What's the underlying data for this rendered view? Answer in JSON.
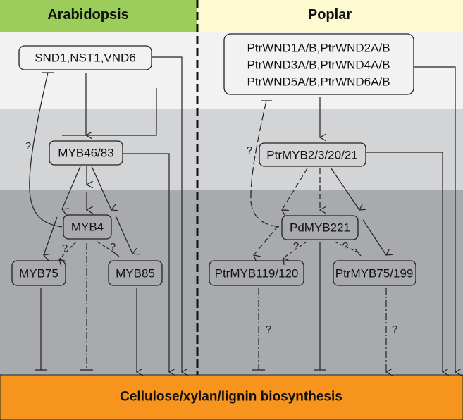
{
  "colors": {
    "arabidopsis_header": "#9ccc5a",
    "poplar_header": "#fdf9d0",
    "band1": "#f2f2f3",
    "band2": "#d3d4d6",
    "band3": "#a8aaad",
    "output": "#f7941d"
  },
  "headers": {
    "left": "Arabidopsis",
    "right": "Poplar"
  },
  "arabidopsis": {
    "top": "SND1,NST1,VND6",
    "tier2": "MYB46/83",
    "mid": "MYB4",
    "left": "MYB75",
    "right": "MYB85"
  },
  "poplar": {
    "top": [
      "PtrWND1A/B,PtrWND2A/B",
      "PtrWND3A/B,PtrWND4A/B",
      "PtrWND5A/B,PtrWND6A/B"
    ],
    "tier2": "PtrMYB2/3/20/21",
    "mid": "PdMYB221",
    "left": "PtrMYB119/120",
    "right": "PtrMYB75/199"
  },
  "question_mark": "?",
  "output": "Cellulose/xylan/lignin biosynthesis"
}
